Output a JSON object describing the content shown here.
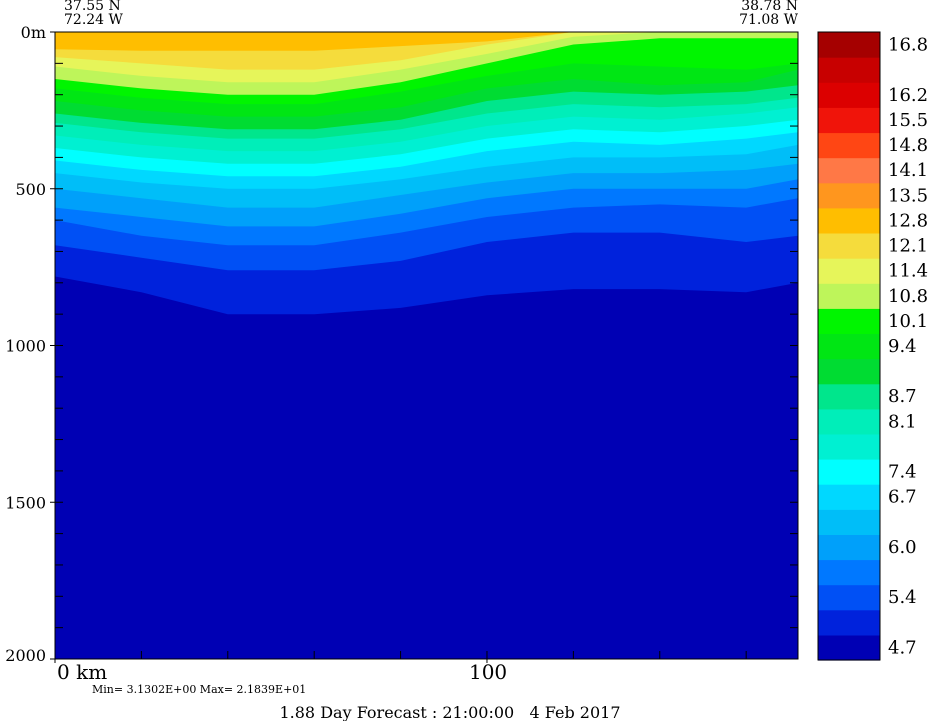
{
  "chart_data": {
    "type": "heatmap",
    "title": "1.88 Day Forecast : 21:00:00   4 Feb 2017",
    "stats_text": "Min= 3.1302E+00  Max= 2.1839E+01",
    "start_point": {
      "lat": "37.55 N",
      "lon": "72.24 W"
    },
    "end_point": {
      "lat": "38.78 N",
      "lon": "71.08 W"
    },
    "x_axis": {
      "unit": "km",
      "range": [
        0,
        172
      ],
      "tick_labels": [
        {
          "value": 0,
          "label": "0 km"
        },
        {
          "value": 100,
          "label": "100"
        }
      ],
      "minor_ticks": [
        20,
        40,
        60,
        80,
        120,
        140,
        160
      ]
    },
    "y_axis": {
      "unit": "m",
      "range": [
        0,
        2000
      ],
      "inverted": true,
      "tick_labels": [
        {
          "value": 0,
          "label": "0m"
        },
        {
          "value": 500,
          "label": "500"
        },
        {
          "value": 1000,
          "label": "1000"
        },
        {
          "value": 1500,
          "label": "1500"
        },
        {
          "value": 2000,
          "label": "2000"
        }
      ],
      "minor_step": 100
    },
    "colorbar": {
      "levels": [
        {
          "color": "#0000b4",
          "label": "4.7"
        },
        {
          "color": "#0022dc",
          "label": ""
        },
        {
          "color": "#0050f5",
          "label": "5.4"
        },
        {
          "color": "#0078ff",
          "label": ""
        },
        {
          "color": "#00a0fa",
          "label": "6.0"
        },
        {
          "color": "#00bef8",
          "label": ""
        },
        {
          "color": "#00d8ff",
          "label": "6.7"
        },
        {
          "color": "#00ffff",
          "label": "7.4"
        },
        {
          "color": "#00f0d2",
          "label": ""
        },
        {
          "color": "#00eeb9",
          "label": "8.1"
        },
        {
          "color": "#00e68c",
          "label": "8.7"
        },
        {
          "color": "#00dc32",
          "label": ""
        },
        {
          "color": "#00e614",
          "label": "9.4"
        },
        {
          "color": "#00f500",
          "label": "10.1"
        },
        {
          "color": "#bef55a",
          "label": "10.8"
        },
        {
          "color": "#e6f55a",
          "label": "11.4"
        },
        {
          "color": "#f5dc3c",
          "label": "12.1"
        },
        {
          "color": "#ffbe00",
          "label": "12.8"
        },
        {
          "color": "#ff961e",
          "label": "13.5"
        },
        {
          "color": "#ff7846",
          "label": "14.1"
        },
        {
          "color": "#ff4614",
          "label": "14.8"
        },
        {
          "color": "#f0140a",
          "label": "15.5"
        },
        {
          "color": "#dc0000",
          "label": "16.2"
        },
        {
          "color": "#c80000",
          "label": ""
        },
        {
          "color": "#a50000",
          "label": "16.8"
        }
      ]
    },
    "contours": {
      "x": [
        0,
        20,
        40,
        60,
        80,
        100,
        120,
        140,
        160,
        172
      ],
      "depths": [
        [
          55,
          60,
          60,
          60,
          45,
          30,
          0,
          0,
          0,
          0
        ],
        [
          80,
          100,
          120,
          120,
          90,
          40,
          0,
          0,
          0,
          0
        ],
        [
          110,
          140,
          160,
          160,
          120,
          70,
          15,
          0,
          0,
          0
        ],
        [
          150,
          180,
          200,
          200,
          160,
          100,
          40,
          20,
          20,
          20
        ],
        [
          180,
          210,
          230,
          230,
          190,
          140,
          100,
          110,
          120,
          100
        ],
        [
          220,
          250,
          270,
          270,
          240,
          180,
          150,
          170,
          160,
          120
        ],
        [
          260,
          290,
          310,
          310,
          280,
          220,
          190,
          200,
          190,
          170
        ],
        [
          290,
          320,
          340,
          340,
          310,
          260,
          230,
          240,
          230,
          210
        ],
        [
          330,
          360,
          380,
          380,
          350,
          300,
          270,
          280,
          260,
          240
        ],
        [
          370,
          400,
          420,
          420,
          390,
          340,
          310,
          320,
          300,
          280
        ],
        [
          410,
          440,
          460,
          460,
          430,
          380,
          350,
          360,
          340,
          320
        ],
        [
          450,
          480,
          500,
          500,
          470,
          430,
          400,
          400,
          390,
          360
        ],
        [
          500,
          530,
          560,
          560,
          520,
          480,
          450,
          450,
          440,
          420
        ],
        [
          560,
          590,
          620,
          620,
          580,
          530,
          500,
          500,
          500,
          470
        ],
        [
          600,
          650,
          680,
          680,
          640,
          590,
          560,
          550,
          560,
          530
        ],
        [
          680,
          720,
          760,
          760,
          730,
          670,
          640,
          640,
          670,
          650
        ],
        [
          780,
          830,
          900,
          900,
          880,
          840,
          820,
          820,
          830,
          800
        ]
      ]
    }
  }
}
